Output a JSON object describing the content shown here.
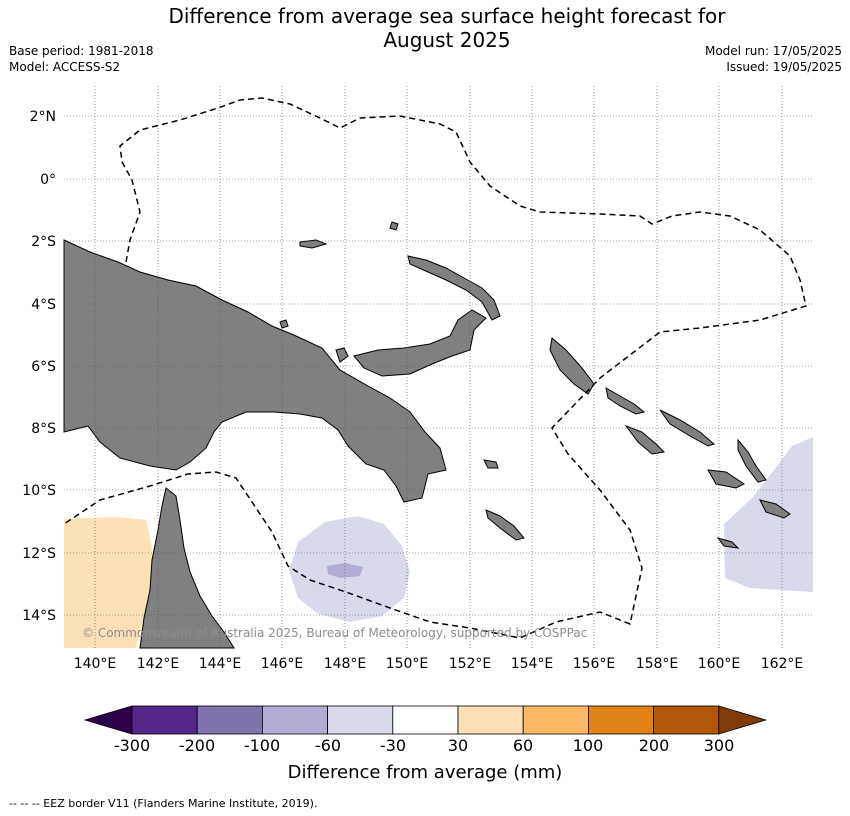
{
  "title_line1": "Difference from average sea surface height forecast for",
  "title_line2": "August 2025",
  "base_period": "Base period: 1981-2018",
  "model": "Model: ACCESS-S2",
  "model_run": "Model run: 17/05/2025",
  "issued": "Issued: 19/05/2025",
  "copyright": "© Commonwealth of Australia 2025, Bureau of Meteorology, supported by COSPPac",
  "lat_labels": [
    "2°N",
    "0°",
    "2°S",
    "4°S",
    "6°S",
    "8°S",
    "10°S",
    "12°S",
    "14°S"
  ],
  "lon_labels": [
    "140°E",
    "142°E",
    "144°E",
    "146°E",
    "148°E",
    "150°E",
    "152°E",
    "154°E",
    "156°E",
    "158°E",
    "160°E",
    "162°E"
  ],
  "colorbar": {
    "label": "Difference from average (mm)",
    "ticks": [
      "-300",
      "-200",
      "-100",
      "-60",
      "-30",
      "30",
      "60",
      "100",
      "200",
      "300"
    ],
    "colors": [
      "#2d004b",
      "#542788",
      "#8073ac",
      "#b2abd2",
      "#d8daeb",
      "#ffffff",
      "#fee0b6",
      "#fdb863",
      "#e08214",
      "#b35806",
      "#7f3b08"
    ]
  },
  "colors": {
    "land": "#808080",
    "low_anomaly_fill": "#d8daeb",
    "strong_low_fill": "#b2abd2",
    "high_anomaly_fill": "#fee0b6"
  },
  "footnote": "--  --  -- EEZ border V11 (Flanders Marine Institute, 2019)."
}
